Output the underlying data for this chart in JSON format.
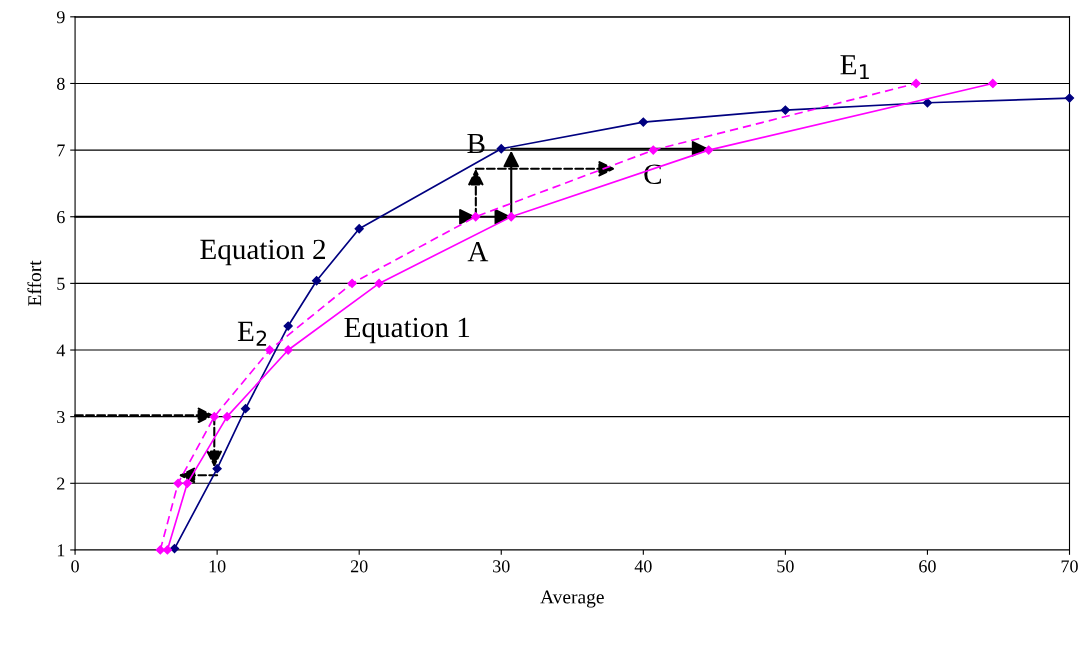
{
  "chart_data": {
    "type": "line",
    "xlabel": "Average",
    "ylabel": "Effort",
    "xlim": [
      0,
      70
    ],
    "ylim": [
      1,
      9
    ],
    "xticks": [
      0,
      10,
      20,
      30,
      40,
      50,
      60,
      70
    ],
    "yticks": [
      1,
      2,
      3,
      4,
      5,
      6,
      7,
      8,
      9
    ],
    "grid": "y",
    "marker": "diamond",
    "series": [
      {
        "color": "#000080",
        "x": [
          7,
          10,
          12,
          15,
          17,
          20,
          30,
          40,
          50,
          60,
          70
        ],
        "values": [
          1.02,
          2.22,
          3.12,
          4.36,
          5.04,
          5.82,
          7.02,
          7.42,
          7.6,
          7.71,
          7.78
        ],
        "line_style": "solid"
      },
      {
        "color": "#ff00ff",
        "x": [
          6.5,
          7.9,
          10.7,
          15.0,
          21.4,
          30.7,
          44.6,
          64.6
        ],
        "values": [
          1,
          2,
          3,
          4,
          5,
          6,
          7,
          8
        ],
        "line_style": "solid"
      },
      {
        "color": "#ff00ff",
        "x": [
          6.0,
          7.25,
          9.8,
          13.7,
          19.5,
          28.2,
          40.7,
          59.2
        ],
        "values": [
          1,
          2,
          3,
          4,
          5,
          6,
          7,
          8
        ],
        "line_style": "dashed"
      }
    ],
    "annotations": [
      "Equation 2",
      "Equation 1",
      {
        "text": "A",
        "x": 30.7,
        "y": 6
      },
      {
        "text": "B",
        "x": 30,
        "y": 7.02
      },
      "C",
      "E$_{1}$",
      "E$_{2}$"
    ]
  }
}
